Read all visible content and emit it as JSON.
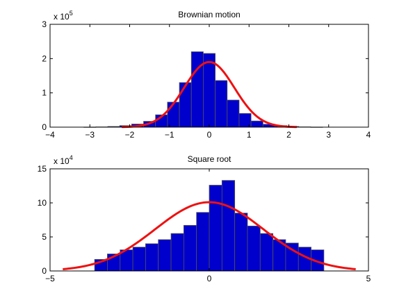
{
  "chart_data": [
    {
      "type": "bar",
      "title": "Brownian motion",
      "multiplier": {
        "base": "x 10",
        "exponent": "5"
      },
      "xlim": [
        -4,
        4
      ],
      "ylim": [
        0,
        3
      ],
      "x_ticks": [
        -4,
        -3,
        -2,
        -1,
        0,
        1,
        2,
        3,
        4
      ],
      "x_tick_labels": [
        "−4",
        "−3",
        "−2",
        "−1",
        "0",
        "1",
        "2",
        "3",
        "4"
      ],
      "y_ticks": [
        0,
        1,
        2,
        3
      ],
      "y_tick_labels": [
        "0",
        "1",
        "2",
        "3"
      ],
      "bar_width": 0.3,
      "bar_centers": [
        -3.9,
        -3.6,
        -3.3,
        -3.0,
        -2.7,
        -2.4,
        -2.1,
        -1.8,
        -1.5,
        -1.2,
        -0.9,
        -0.6,
        -0.3,
        0.0,
        0.3,
        0.6,
        0.9,
        1.2,
        1.5,
        1.8,
        2.1,
        2.4,
        2.7,
        3.0,
        3.3,
        3.6,
        3.9
      ],
      "bar_values": [
        0,
        0,
        0,
        0.003,
        0.007,
        0.02,
        0.045,
        0.09,
        0.17,
        0.36,
        0.73,
        1.3,
        2.2,
        2.15,
        1.36,
        0.79,
        0.4,
        0.18,
        0.085,
        0.045,
        0.02,
        0.008,
        0.003,
        0,
        0,
        0,
        0
      ],
      "fit_curve": {
        "peak": 1.9,
        "mean": 0,
        "sigma": 0.63,
        "x_range": [
          -2.2,
          2.2
        ]
      },
      "bar_color": "#0000cc",
      "bar_edge_color": "#555555",
      "curve_color": "#ee1111",
      "grid": false
    },
    {
      "type": "bar",
      "title": "Square root",
      "multiplier": {
        "base": "x 10",
        "exponent": "4"
      },
      "xlim": [
        -5,
        5
      ],
      "ylim": [
        0,
        15
      ],
      "x_ticks": [
        -5,
        0,
        5
      ],
      "x_tick_labels": [
        "−5",
        "0",
        "5"
      ],
      "y_ticks": [
        0,
        5,
        10,
        15
      ],
      "y_tick_labels": [
        "0",
        "5",
        "10",
        "15"
      ],
      "bar_width": 0.4,
      "bar_centers": [
        -3.4,
        -3.0,
        -2.6,
        -2.2,
        -1.8,
        -1.4,
        -1.0,
        -0.6,
        -0.2,
        0.2,
        0.6,
        1.0,
        1.4,
        1.8,
        2.2,
        2.6,
        3.0,
        3.4
      ],
      "bar_values": [
        1.7,
        2.5,
        3.1,
        3.5,
        4.0,
        4.6,
        5.5,
        6.7,
        8.6,
        12.6,
        13.3,
        8.5,
        6.6,
        5.5,
        4.6,
        4.1,
        3.5,
        3.1
      ],
      "fit_curve": {
        "peak": 10.1,
        "mean": 0,
        "sigma": 1.7,
        "x_range": [
          -4.6,
          4.6
        ]
      },
      "bar_color": "#0000cc",
      "bar_edge_color": "#555555",
      "curve_color": "#ee1111",
      "grid": false
    }
  ]
}
